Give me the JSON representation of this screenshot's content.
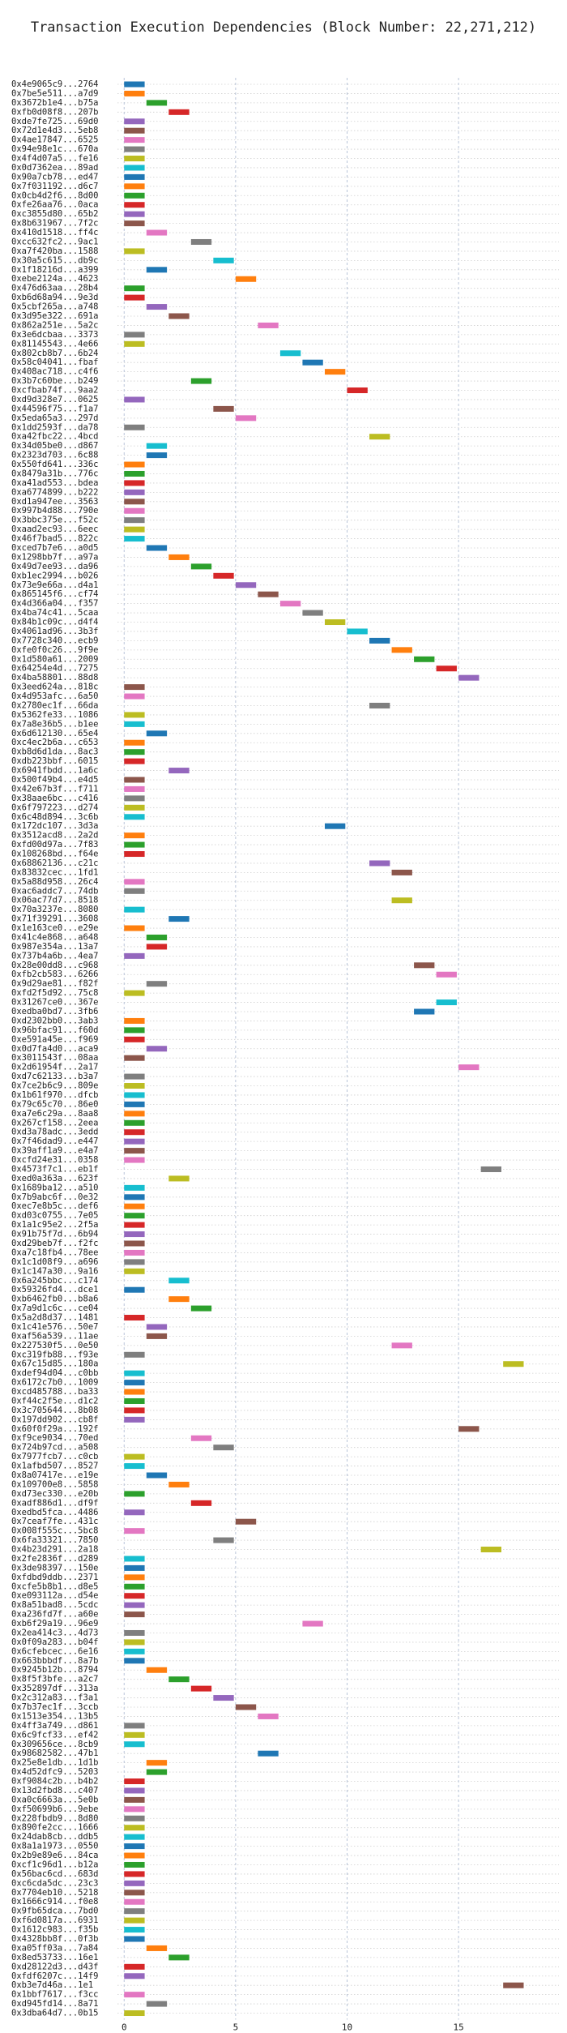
{
  "chart_data": {
    "type": "gantt",
    "title": "Transaction Execution Dependencies (Block Number: 22,271,212)",
    "categories": [
      "0x4e9065c9...2764",
      "0x7be5e511...a7d9",
      "0x3672b1e4...b75a",
      "0xfb0d08f8...207b",
      "0xde7fe725...69d0",
      "0x72d1e4d3...5eb8",
      "0x4ae17847...6525",
      "0x94e98e1c...670a",
      "0x4f4d07a5...fe16",
      "0x0d7362ea...89ad",
      "0x90a7cb78...ed47",
      "0x7f031192...d6c7",
      "0x0cb4d2f6...8d00",
      "0xfe26aa76...0aca",
      "0xc3855d80...65b2",
      "0x8b631967...7f2c",
      "0x410d1518...ff4c",
      "0xcc632fc2...9ac1",
      "0xa7f420ba...1588",
      "0x30a5c615...db9c",
      "0x1f18216d...a399",
      "0xebe2124a...4623",
      "0x476d63aa...28b4",
      "0xb6d68a94...9e3d",
      "0x5cbf265a...a748",
      "0x3d95e322...691a",
      "0x862a251e...5a2c",
      "0x3e6dcbaa...3373",
      "0x81145543...4e66",
      "0x802cb8b7...6b24",
      "0x58c04041...fbaf",
      "0x408ac718...c4f6",
      "0x3b7c60be...b249",
      "0xcfbab74f...9aa2",
      "0xd9d328e7...0625",
      "0x44596f75...f1a7",
      "0x5eda65a3...297d",
      "0x1dd2593f...da78",
      "0xa42fbc22...4bcd",
      "0x34d05be0...d867",
      "0x2323d703...6c88",
      "0x550fd641...336c",
      "0x8479a31b...776c",
      "0xa41ad553...bdea",
      "0xa6774899...b222",
      "0xd1a947ee...3563",
      "0x997b4d88...790e",
      "0x3bbc375e...f52c",
      "0xaad2ec93...6eec",
      "0x46f7bad5...822c",
      "0xced7b7e6...a0d5",
      "0x1298bb7f...a97a",
      "0x49d7ee93...da96",
      "0xb1ec2994...b026",
      "0x73e9e66a...d4a1",
      "0x865145f6...cf74",
      "0x4d366a04...f357",
      "0x4ba74c41...5caa",
      "0x84b1c09c...d4f4",
      "0x4061ad96...3b3f",
      "0x7728c340...ecb9",
      "0xfe0f0c26...9f9e",
      "0x1d580a61...2009",
      "0x64254e4d...7275",
      "0x4ba58801...88d8",
      "0x3eed624a...818c",
      "0x4d953afc...6a50",
      "0x2780ec1f...66da",
      "0x5362fe33...1086",
      "0x7a8e36b5...b1ee",
      "0x6d612130...65e4",
      "0xc4ec2b6a...c653",
      "0xb8d6d1da...8ac3",
      "0xdb223bbf...6015",
      "0x6941fbdd...1a6c",
      "0x500f49b4...e4d5",
      "0x42e67b3f...f711",
      "0x38aae6bc...c416",
      "0x6f797223...d274",
      "0x6c48d894...3c6b",
      "0x172dc107...3d3a",
      "0x3512acd8...2a2d",
      "0xfd00d97a...7f83",
      "0x108268bd...f64e",
      "0x68862136...c21c",
      "0x83832cec...1fd1",
      "0x5a88d958...26c4",
      "0xac6addc7...74db",
      "0x06ac77d7...8518",
      "0x70a3237e...8080",
      "0x71f39291...3608",
      "0x1e163ce0...e29e",
      "0x41c4e868...a648",
      "0x987e354a...13a7",
      "0x737b4a6b...4ea7",
      "0x28e00dd8...c968",
      "0xfb2cb583...6266",
      "0x9d29ae81...f82f",
      "0xfd2f5d92...75c8",
      "0x31267ce0...367e",
      "0xedba0bd7...3fb6",
      "0xd2302bb0...3ab3",
      "0x96bfac91...f60d",
      "0xe591a45e...f969",
      "0x0d7fa4d0...aca9",
      "0x3011543f...08aa",
      "0x2d61954f...2a17",
      "0xd7c62133...b3a7",
      "0x7ce2b6c9...809e",
      "0x1b61f970...dfcb",
      "0x79c65c70...86e0",
      "0xa7e6c29a...8aa8",
      "0x267cf158...2eea",
      "0xd3a78adc...3edd",
      "0x7f46dad9...e447",
      "0x39aff1a9...e4a7",
      "0xcfd24e31...0358",
      "0x4573f7c1...eb1f",
      "0xed0a363a...623f",
      "0x1689ba12...a510",
      "0x7b9abc6f...0e32",
      "0xec7e8b5c...def6",
      "0xd03c0755...7e05",
      "0x1a1c95e2...2f5a",
      "0x91b75f7d...6b94",
      "0xd29beb7f...f2fc",
      "0xa7c18fb4...78ee",
      "0x1c1d08f9...a696",
      "0x1c147a30...9a16",
      "0x6a245bbc...c174",
      "0x59326fd4...dce1",
      "0xb6462fb0...b8a6",
      "0x7a9d1c6c...ce04",
      "0x5a2d8d37...1481",
      "0x1c41e576...50e7",
      "0xaf56a539...11ae",
      "0x227530f5...0e50",
      "0xc319fb88...f93e",
      "0x67c15d85...180a",
      "0xdef94d04...c0bb",
      "0x6172c7b0...1009",
      "0xcd485788...ba33",
      "0xf44c2f5e...d1c2",
      "0x3c705644...8b08",
      "0x197dd902...cb8f",
      "0x60f0f29a...192f",
      "0xf9ce9034...70ed",
      "0x724b97cd...a508",
      "0x7977fcb7...c0cb",
      "0x1afbd507...8527",
      "0x8a07417e...e19e",
      "0x109700e8...5858",
      "0xd73ec330...e20b",
      "0xadf886d1...df9f",
      "0xedbd5fca...4486",
      "0x7ceaf7fe...431c",
      "0x008f555c...5bc8",
      "0x6fa33321...7850",
      "0x4b23d291...2a18",
      "0x2fe2836f...d289",
      "0x3de98397...150e",
      "0xfdbd9ddb...2371",
      "0xcfe5b8b1...d8e5",
      "0xe093112a...d54e",
      "0x8a51bad8...5cdc",
      "0xa236fd7f...a60e",
      "0xb6f29a19...96e9",
      "0x2ea414c3...4d73",
      "0x0f09a283...b04f",
      "0x6cfebcec...6e16",
      "0x663bbbdf...8a7b",
      "0x9245b12b...8794",
      "0x8f5f3bfe...a2c7",
      "0x352897df...313a",
      "0x2c312a83...f3a1",
      "0x7b37ec1f...3ccb",
      "0x1513e354...13b5",
      "0x4ff3a749...d861",
      "0x6c9fcf33...ef42",
      "0x309656ce...8cb9",
      "0x98682582...47b1",
      "0x25e8e1db...1d1b",
      "0x4d52dfc9...5203",
      "0xf9084c2b...b4b2",
      "0x13d2fbd8...c407",
      "0xa0c6663a...5e0b",
      "0xf50699b6...9ebe",
      "0x228fbdb9...8d80",
      "0x890fe2cc...1666",
      "0x24dab8cb...ddb5",
      "0x8a1a1973...0550",
      "0x2b9e89e6...84ca",
      "0xcf1c96d1...b12a",
      "0x56bac6cd...683d",
      "0xc6cda5dc...23c3",
      "0x7704eb10...5218",
      "0x1666c914...f0e8",
      "0x9fb65dca...7bd0",
      "0xf6d0817a...6931",
      "0x1612c983...f35b",
      "0x4328bb8f...0f3b",
      "0xa05ff03a...7a84",
      "0x8ed53733...16e1",
      "0xd28122d3...d43f",
      "0xfdf6207c...14f9",
      "0xb3e7d46a...1e1",
      "0x1bbf7617...f3cc",
      "0xd945fd14...8a71",
      "0x3dba64d7...0b15"
    ],
    "values": [
      0,
      0,
      1,
      2,
      0,
      0,
      0,
      0,
      0,
      0,
      0,
      0,
      0,
      0,
      0,
      0,
      1,
      3,
      0,
      4,
      1,
      5,
      0,
      0,
      1,
      2,
      6,
      0,
      0,
      7,
      8,
      9,
      3,
      10,
      0,
      4,
      5,
      0,
      11,
      1,
      1,
      0,
      0,
      0,
      0,
      0,
      0,
      0,
      0,
      0,
      1,
      2,
      3,
      4,
      5,
      6,
      7,
      8,
      9,
      10,
      11,
      12,
      13,
      14,
      15,
      0,
      0,
      11,
      0,
      0,
      1,
      0,
      0,
      0,
      2,
      0,
      0,
      0,
      0,
      0,
      9,
      0,
      0,
      0,
      11,
      12,
      0,
      0,
      12,
      0,
      2,
      0,
      1,
      1,
      0,
      13,
      14,
      1,
      0,
      14,
      13,
      0,
      0,
      0,
      1,
      0,
      15,
      0,
      0,
      0,
      0,
      0,
      0,
      0,
      0,
      0,
      0,
      16,
      2,
      0,
      0,
      0,
      0,
      0,
      0,
      0,
      0,
      0,
      0,
      2,
      0,
      2,
      3,
      0,
      1,
      1,
      12,
      0,
      17,
      0,
      0,
      0,
      0,
      0,
      0,
      15,
      3,
      4,
      0,
      0,
      1,
      2,
      0,
      3,
      0,
      5,
      0,
      4,
      16,
      0,
      0,
      0,
      0,
      0,
      0,
      0,
      8,
      0,
      0,
      0,
      0,
      1,
      2,
      3,
      4,
      5,
      6,
      0,
      0,
      0,
      6,
      1,
      1,
      0,
      0,
      0,
      0,
      0,
      0,
      0,
      0,
      0,
      0,
      0,
      0,
      0,
      0,
      0,
      0,
      0,
      0,
      1,
      2,
      0,
      0,
      17,
      0,
      1,
      0
    ],
    "colors": [
      "#1f77b4",
      "#ff7f0e",
      "#2ca02c",
      "#d62728",
      "#9467bd",
      "#8c564b",
      "#e377c2",
      "#7f7f7f",
      "#bcbd22",
      "#17becf"
    ],
    "xlim": [
      -0.3,
      19.5
    ],
    "xticks": [
      0,
      5,
      10,
      15
    ],
    "grid": true
  }
}
